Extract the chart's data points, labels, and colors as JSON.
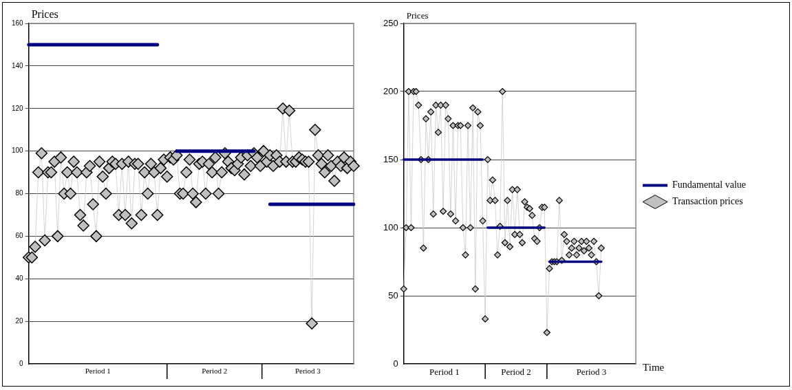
{
  "chart_data": [
    {
      "type": "line",
      "ylabel": "Prices",
      "ylim": [
        0,
        160
      ],
      "yticks": [
        0,
        20,
        40,
        60,
        80,
        100,
        120,
        140,
        160
      ],
      "grid": "y",
      "tick_labels": "y",
      "legend": false,
      "annotations": [
        "Period 1",
        "Period 2",
        "Period 3"
      ],
      "categories": [
        null,
        null,
        null,
        null,
        null,
        null,
        null,
        null,
        null,
        null,
        null,
        null,
        null,
        null,
        null,
        null,
        null,
        null,
        null,
        null,
        null,
        null,
        null,
        null,
        null,
        null,
        null,
        null,
        null,
        null,
        null,
        null,
        null,
        null,
        null,
        null,
        null,
        null,
        null,
        null,
        null,
        null,
        null,
        null,
        null,
        null,
        null,
        null,
        null,
        null,
        null,
        null,
        null,
        null,
        null,
        null,
        null,
        null,
        null,
        null,
        null,
        null,
        null,
        null,
        null,
        null,
        null,
        null,
        null,
        null,
        null,
        null,
        null,
        null,
        null,
        null,
        null,
        null,
        null,
        null,
        null,
        null,
        null,
        null,
        null,
        null,
        null,
        null,
        null,
        null,
        null,
        null,
        null,
        null,
        null,
        null,
        null,
        null,
        null,
        null,
        null,
        null
      ],
      "series": [
        {
          "color": "#000080",
          "marker": "none",
          "values": [
            150,
            150,
            150,
            150,
            150,
            150,
            150,
            150,
            150,
            150,
            150,
            150,
            150,
            150,
            150,
            150,
            150,
            150,
            150,
            150,
            150,
            150,
            150,
            150,
            150,
            150,
            150,
            150,
            150,
            150,
            150,
            150,
            150,
            150,
            150,
            150,
            150,
            150,
            150,
            150,
            150,
            null,
            null,
            null,
            null,
            null,
            100,
            100,
            100,
            100,
            100,
            100,
            100,
            100,
            100,
            100,
            100,
            100,
            100,
            100,
            100,
            100,
            100,
            100,
            100,
            100,
            100,
            100,
            100,
            100,
            100,
            null,
            null,
            null,
            null,
            75,
            75,
            75,
            75,
            75,
            75,
            75,
            75,
            75,
            75,
            75,
            75,
            75,
            75,
            75,
            75,
            75,
            75,
            75,
            75,
            75,
            75,
            75,
            75,
            75,
            75,
            75
          ]
        },
        {
          "color": "#c0c0c0",
          "marker": "diamond",
          "values": [
            50,
            50,
            55,
            90,
            99,
            58,
            90,
            90,
            95,
            60,
            97,
            80,
            90,
            80,
            95,
            90,
            70,
            65,
            90,
            93,
            75,
            60,
            95,
            88,
            80,
            92,
            95,
            94,
            70,
            94,
            70,
            95,
            66,
            94,
            94,
            70,
            90,
            80,
            94,
            90,
            70,
            92,
            96,
            88,
            97,
            96,
            98,
            80,
            80,
            90,
            96,
            80,
            76,
            94,
            95,
            80,
            94,
            90,
            97,
            80,
            90,
            99,
            95,
            92,
            91,
            94,
            97,
            89,
            98,
            93,
            99,
            97,
            93,
            100,
            95,
            98,
            93,
            98,
            95,
            120,
            95,
            119,
            95,
            95,
            97,
            96,
            95,
            95,
            19,
            110,
            98,
            94,
            90,
            98,
            93,
            86,
            95,
            93,
            97,
            92,
            95,
            93
          ]
        }
      ]
    },
    {
      "type": "line",
      "ylabel": "Prices",
      "xlabel": "Time",
      "ylim": [
        0,
        250
      ],
      "yticks": [
        0,
        50,
        100,
        150,
        200,
        250
      ],
      "grid": "y",
      "tick_labels": "y",
      "legend": "right",
      "annotations": [
        "Period 1",
        "Period 2",
        "Period 3"
      ],
      "categories": [
        null,
        null,
        null,
        null,
        null,
        null,
        null,
        null,
        null,
        null,
        null,
        null,
        null,
        null,
        null,
        null,
        null,
        null,
        null,
        null,
        null,
        null,
        null,
        null,
        null,
        null,
        null,
        null,
        null,
        null,
        null,
        null,
        null,
        null,
        null,
        null,
        null,
        null,
        null,
        null,
        null,
        null,
        null,
        null,
        null,
        null,
        null,
        null,
        null,
        null,
        null,
        null,
        null,
        null,
        null,
        null,
        null,
        null,
        null,
        null,
        null,
        null,
        null,
        null,
        null,
        null,
        null,
        null,
        null,
        null,
        null,
        null,
        null,
        null,
        null,
        null,
        null,
        null,
        null,
        null,
        null,
        null,
        null,
        null,
        null,
        null,
        null,
        null,
        null,
        null,
        null,
        null,
        null,
        null,
        null
      ],
      "series": [
        {
          "name": "Fundamental value",
          "color": "#000080",
          "marker": "none",
          "values": [
            150,
            150,
            150,
            150,
            150,
            150,
            150,
            150,
            150,
            150,
            150,
            150,
            150,
            150,
            150,
            150,
            150,
            150,
            150,
            150,
            150,
            150,
            150,
            150,
            150,
            150,
            150,
            150,
            150,
            150,
            150,
            150,
            150,
            null,
            100,
            100,
            100,
            100,
            100,
            100,
            100,
            100,
            100,
            100,
            100,
            100,
            100,
            100,
            100,
            100,
            100,
            100,
            100,
            100,
            100,
            100,
            100,
            100,
            null,
            75,
            75,
            75,
            75,
            75,
            75,
            75,
            75,
            75,
            75,
            75,
            75,
            75,
            75,
            75,
            75,
            75,
            75,
            75,
            75,
            75,
            75,
            null,
            null,
            null,
            null,
            null,
            null,
            null,
            null,
            null,
            null,
            null,
            null,
            null,
            null
          ]
        },
        {
          "name": "Transaction prices",
          "color": "#c0c0c0",
          "marker": "diamond",
          "values": [
            55,
            100,
            200,
            100,
            200,
            200,
            190,
            150,
            85,
            180,
            150,
            185,
            110,
            190,
            170,
            190,
            112,
            190,
            180,
            110,
            175,
            105,
            175,
            175,
            100,
            80,
            175,
            100,
            188,
            55,
            185,
            175,
            105,
            33,
            150,
            120,
            135,
            120,
            80,
            101,
            200,
            89,
            120,
            86,
            128,
            95,
            128,
            95,
            89,
            119,
            115,
            114,
            109,
            92,
            90,
            100,
            115,
            115,
            23,
            70,
            75,
            75,
            75,
            120,
            76,
            95,
            90,
            80,
            85,
            90,
            80,
            85,
            90,
            83,
            90,
            85,
            80,
            90,
            75,
            50,
            85,
            null,
            null,
            null,
            null,
            null,
            null,
            null,
            null,
            null,
            null,
            null,
            null,
            null,
            null
          ]
        }
      ]
    }
  ]
}
